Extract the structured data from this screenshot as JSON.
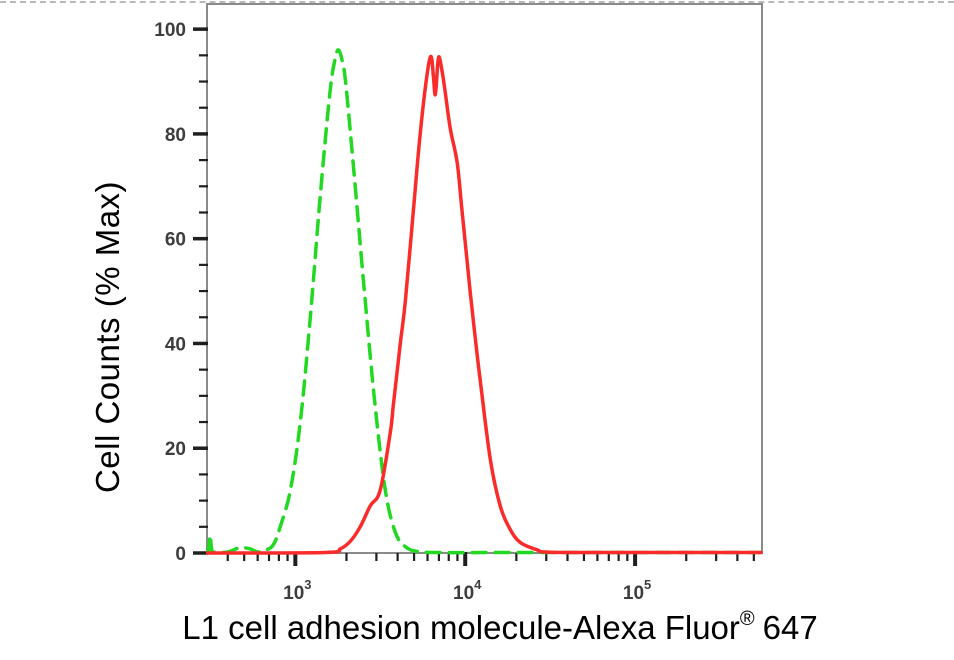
{
  "chart_data": {
    "type": "line",
    "chart_kind": "flow-cytometry-overlay-histogram",
    "title": "",
    "xlabel": "L1 cell adhesion molecule-Alexa Fluor® 647",
    "xlabel_parts": {
      "main": "L1 cell adhesion molecule-Alexa Fluor",
      "registered": "®",
      "suffix": "647"
    },
    "ylabel": "Cell Counts (% Max)",
    "x_scale": "log",
    "x_log_range": [
      2.48,
      5.747
    ],
    "ylim": [
      0,
      104.8
    ],
    "grid": false,
    "legend": "none",
    "x_major_ticks": [
      {
        "base": "10",
        "exponent": "3",
        "value": 1000
      },
      {
        "base": "10",
        "exponent": "4",
        "value": 10000
      },
      {
        "base": "10",
        "exponent": "5",
        "value": 100000
      }
    ],
    "y_major_ticks": [
      0,
      20,
      40,
      60,
      80,
      100
    ],
    "y_minor_tick_step": 5,
    "colors": {
      "green_dashed": "#22d822",
      "red_solid": "#f92b2b",
      "frame": "#8a8a8a",
      "ticks": "#1f1f1f",
      "tick_labels": "#3d3d3d",
      "title_text": "#000000"
    },
    "series": [
      {
        "name": "green-dashed",
        "style": "dashed",
        "color": "#22d822",
        "peak": {
          "x": 1800,
          "y_percent_max": 96
        },
        "points": [
          [
            305,
            0
          ],
          [
            310,
            1.5
          ],
          [
            315,
            3.4
          ],
          [
            321,
            1
          ],
          [
            330,
            0.2
          ],
          [
            400,
            0.2
          ],
          [
            470,
            1
          ],
          [
            540,
            0.8
          ],
          [
            600,
            0.2
          ],
          [
            660,
            0.5
          ],
          [
            740,
            1.5
          ],
          [
            815,
            5
          ],
          [
            935,
            12
          ],
          [
            1070,
            25
          ],
          [
            1225,
            45
          ],
          [
            1400,
            68
          ],
          [
            1600,
            88
          ],
          [
            1720,
            94.5
          ],
          [
            1800,
            96
          ],
          [
            1900,
            93.5
          ],
          [
            1990,
            89
          ],
          [
            2250,
            70
          ],
          [
            2580,
            48
          ],
          [
            2950,
            28
          ],
          [
            3385,
            12
          ],
          [
            3870,
            4
          ],
          [
            4440,
            1.2
          ],
          [
            5200,
            0.3
          ],
          [
            6500,
            0.1
          ],
          [
            20000,
            0.1
          ],
          [
            100000,
            0.1
          ],
          [
            550000,
            0.1
          ]
        ]
      },
      {
        "name": "red-solid",
        "style": "solid",
        "color": "#f92b2b",
        "peak": {
          "x": 6300,
          "y_percent_max": 94.8
        },
        "points": [
          [
            305,
            0
          ],
          [
            1500,
            0.1
          ],
          [
            1840,
            0.8
          ],
          [
            2100,
            2.2
          ],
          [
            2410,
            5
          ],
          [
            2760,
            9
          ],
          [
            3160,
            12
          ],
          [
            3620,
            23
          ],
          [
            3770,
            28
          ],
          [
            4150,
            40
          ],
          [
            4440,
            48
          ],
          [
            4940,
            65
          ],
          [
            5430,
            80
          ],
          [
            5970,
            91.5
          ],
          [
            6300,
            94.8
          ],
          [
            6500,
            91
          ],
          [
            6670,
            87.5
          ],
          [
            6900,
            93.5
          ],
          [
            7050,
            94.6
          ],
          [
            7350,
            91.5
          ],
          [
            7620,
            88
          ],
          [
            8170,
            81
          ],
          [
            8970,
            74.5
          ],
          [
            9600,
            65
          ],
          [
            10690,
            50
          ],
          [
            11460,
            41
          ],
          [
            12250,
            33
          ],
          [
            14030,
            18
          ],
          [
            16070,
            9
          ],
          [
            18410,
            4.5
          ],
          [
            21090,
            2
          ],
          [
            26550,
            0.6
          ],
          [
            32000,
            0.15
          ],
          [
            100000,
            0.1
          ],
          [
            550000,
            0.1
          ]
        ]
      }
    ]
  }
}
